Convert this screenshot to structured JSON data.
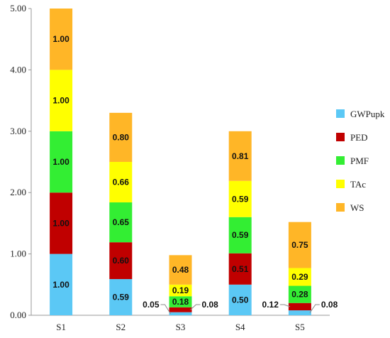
{
  "chart_data": {
    "type": "bar",
    "stacked": true,
    "categories": [
      "S1",
      "S2",
      "S3",
      "S4",
      "S5"
    ],
    "ylim": [
      0,
      5
    ],
    "yticks": [
      "0.00",
      "1.00",
      "2.00",
      "3.00",
      "4.00",
      "5.00"
    ],
    "grid": false,
    "legend_position": "right",
    "series": [
      {
        "name": "GWPupk",
        "color": "#5BC8F5",
        "values": [
          1.0,
          0.59,
          0.05,
          0.5,
          0.08
        ],
        "labels": [
          "1.00",
          "0.59",
          "0.05",
          "0.50",
          "0.08"
        ]
      },
      {
        "name": "PED",
        "color": "#C00000",
        "values": [
          1.0,
          0.6,
          0.08,
          0.51,
          0.12
        ],
        "labels": [
          "1.00",
          "0.60",
          "0.08",
          "0.51",
          "0.12"
        ]
      },
      {
        "name": "PMF",
        "color": "#33EE33",
        "values": [
          1.0,
          0.65,
          0.18,
          0.59,
          0.28
        ],
        "labels": [
          "1.00",
          "0.65",
          "0.18",
          "0.59",
          "0.28"
        ]
      },
      {
        "name": "TAc",
        "color": "#FFFF00",
        "values": [
          1.0,
          0.66,
          0.19,
          0.59,
          0.29
        ],
        "labels": [
          "1.00",
          "0.66",
          "0.19",
          "0.59",
          "0.29"
        ]
      },
      {
        "name": "WS",
        "color": "#FFB627",
        "values": [
          1.0,
          0.8,
          0.48,
          0.81,
          0.75
        ],
        "labels": [
          "1.00",
          "0.80",
          "0.48",
          "0.81",
          "0.75"
        ]
      }
    ],
    "callouts": [
      {
        "category": "S3",
        "series": "GWPupk",
        "side": "left"
      },
      {
        "category": "S3",
        "series": "PED",
        "side": "right"
      },
      {
        "category": "S5",
        "series": "PED",
        "side": "left"
      },
      {
        "category": "S5",
        "series": "GWPupk",
        "side": "right"
      }
    ]
  }
}
